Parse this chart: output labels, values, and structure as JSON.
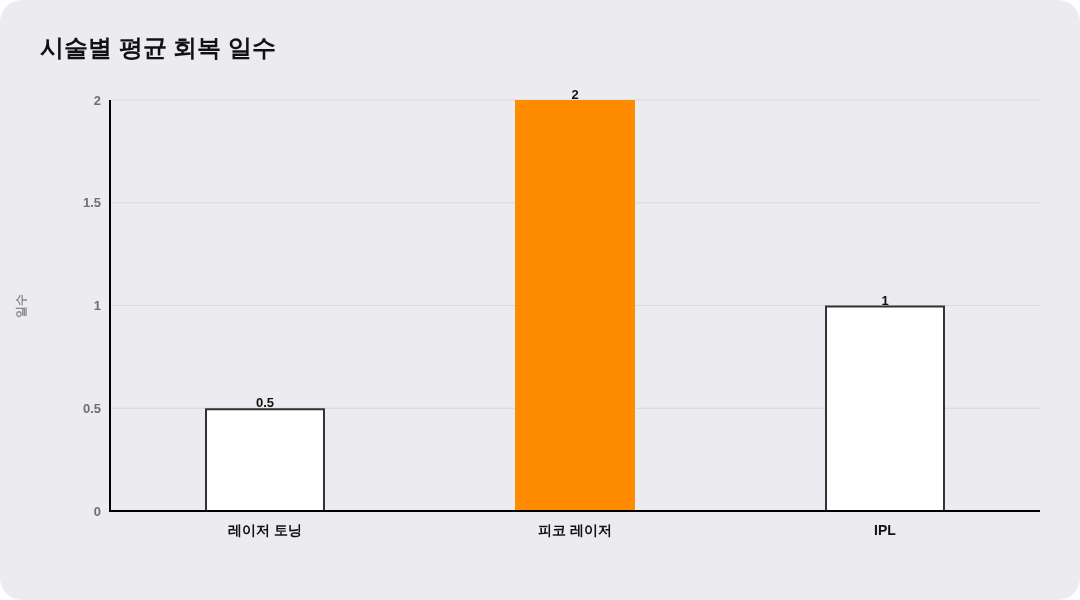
{
  "chart_data": {
    "type": "bar",
    "title": "시술별 평균 회복 일수",
    "ylabel": "일수",
    "categories": [
      "레이저 토닝",
      "피코 레이저",
      "IPL"
    ],
    "values": [
      0.5,
      2,
      1
    ],
    "colors": [
      "#ffffff",
      "#ff8c00",
      "#ffffff"
    ],
    "ylim": [
      0,
      2
    ],
    "yticks": [
      0,
      0.5,
      1,
      1.5,
      2
    ],
    "grid": "y",
    "data_labels": true
  }
}
